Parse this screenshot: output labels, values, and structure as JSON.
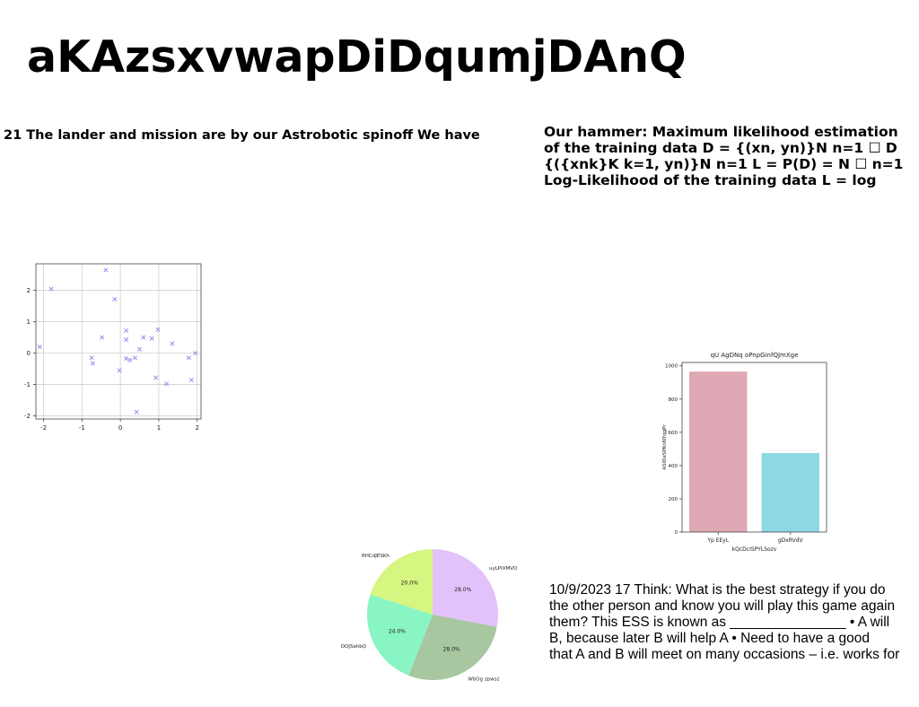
{
  "title": "aKAzsxvwapDiDqumjDAnQ",
  "text_block_1": "21 The lander and mission are by our Astrobotic spinoff We have",
  "text_block_2": [
    "Our hammer: Maximum likelihood estimation",
    "of the training data D = {(xn, yn)}N n=1 ☐ D",
    "{({xnk}K k=1, yn)}N n=1 L = P(D) = N ☐ n=1",
    "Log-Likelihood of the training data L = log"
  ],
  "text_block_3": [
    "10/9/2023 17 Think: What is the best strategy if you do",
    "the other person and know you will play this game again",
    "them? This ESS is known as _______________ • A will",
    "B, because later B will help A • Need to have a good",
    "that A and B will meet on many occasions – i.e. works for"
  ],
  "chart_data": [
    {
      "type": "scatter",
      "marker": "x",
      "color": "#8888ee",
      "xlim": [
        -2.2,
        2.1
      ],
      "ylim": [
        -2.1,
        2.85
      ],
      "xticks": [
        "-2",
        "-1",
        "0",
        "1",
        "2"
      ],
      "yticks": [
        "-2",
        "-1",
        "0",
        "1",
        "2"
      ],
      "grid": true,
      "points": [
        {
          "x": -2.1,
          "y": 0.2
        },
        {
          "x": -1.8,
          "y": 2.05
        },
        {
          "x": -0.75,
          "y": -0.15
        },
        {
          "x": -0.72,
          "y": -0.33
        },
        {
          "x": -0.48,
          "y": 0.5
        },
        {
          "x": -0.38,
          "y": 2.65
        },
        {
          "x": -0.15,
          "y": 1.72
        },
        {
          "x": -0.02,
          "y": -0.55
        },
        {
          "x": 0.15,
          "y": 0.72
        },
        {
          "x": 0.15,
          "y": 0.43
        },
        {
          "x": 0.15,
          "y": -0.17
        },
        {
          "x": 0.25,
          "y": -0.22
        },
        {
          "x": 0.38,
          "y": -0.15
        },
        {
          "x": 0.42,
          "y": -1.88
        },
        {
          "x": 0.5,
          "y": 0.12
        },
        {
          "x": 0.6,
          "y": 0.5
        },
        {
          "x": 0.82,
          "y": 0.47
        },
        {
          "x": 0.92,
          "y": -0.78
        },
        {
          "x": 0.98,
          "y": 0.75
        },
        {
          "x": 1.2,
          "y": -0.98
        },
        {
          "x": 1.35,
          "y": 0.3
        },
        {
          "x": 1.78,
          "y": -0.15
        },
        {
          "x": 1.85,
          "y": -0.86
        },
        {
          "x": 1.95,
          "y": 0.0
        }
      ]
    },
    {
      "type": "bar",
      "title": "qU AgDNq oPnpGinfQJmXge",
      "xlabel": "kQcDcISPYLSozv",
      "ylabel": "ASIDeSPKnNYqgPr",
      "categories": [
        "Yp EEyL",
        "gDxRVdV"
      ],
      "values": [
        965,
        475
      ],
      "colors": [
        "#dea8b4",
        "#8ed8e6"
      ],
      "ylim": [
        0,
        1020
      ],
      "yticks": [
        0,
        200,
        400,
        600,
        800,
        1000
      ],
      "grid": false
    },
    {
      "type": "pie",
      "slices": [
        {
          "label": "uyLPIXMVO",
          "value": 28.0,
          "pct": "28.0%",
          "color": "#e3c1fb"
        },
        {
          "label": "WbOg zpwsz",
          "value": 28.0,
          "pct": "28.0%",
          "color": "#a6c7a0"
        },
        {
          "label": "OOJSahbQ",
          "value": 24.0,
          "pct": "24.0%",
          "color": "#89f5c4"
        },
        {
          "label": "RHCdJESKh",
          "value": 20.0,
          "pct": "20.0%",
          "color": "#d6f581"
        }
      ]
    }
  ]
}
